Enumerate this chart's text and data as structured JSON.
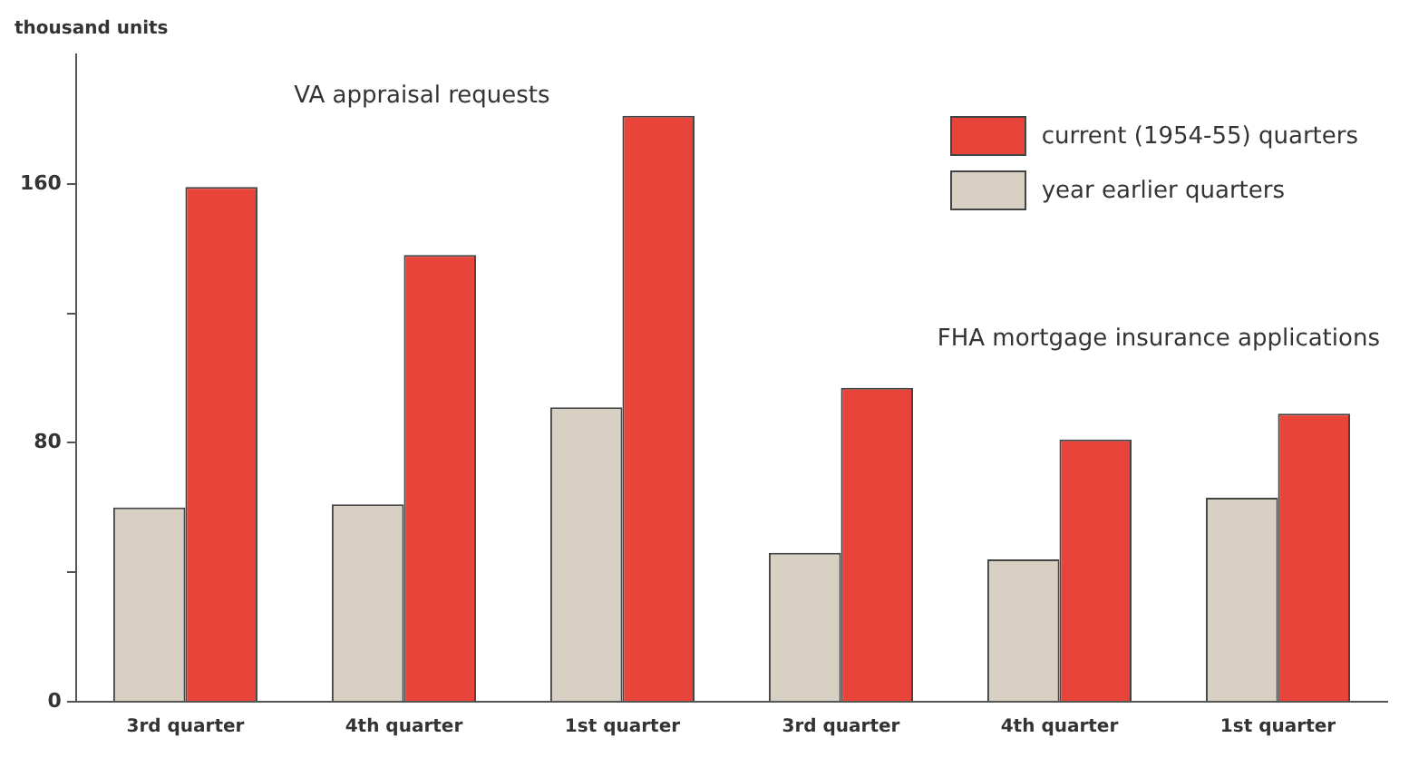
{
  "chart_data": {
    "type": "bar",
    "ylabel": "thousand units",
    "categories": [
      "3rd quarter",
      "4th quarter",
      "1st quarter",
      "3rd quarter",
      "4th quarter",
      "1st quarter"
    ],
    "series": [
      {
        "name": "year earlier quarters",
        "color": "#d9d0c4",
        "values": [
          60,
          61,
          91,
          46,
          44,
          63
        ]
      },
      {
        "name": "current (1954-55) quarters",
        "color": "#e8443a",
        "values": [
          159,
          138,
          181,
          97,
          81,
          89
        ]
      }
    ],
    "ylim": [
      0,
      200
    ],
    "yticks": [
      0,
      {
        "value": 40,
        "label": null
      },
      80,
      {
        "value": 120,
        "label": null
      },
      160
    ],
    "annotations": [
      "VA appraisal requests",
      "FHA mortgage insurance applications"
    ],
    "legend": "top right",
    "grid": false
  }
}
